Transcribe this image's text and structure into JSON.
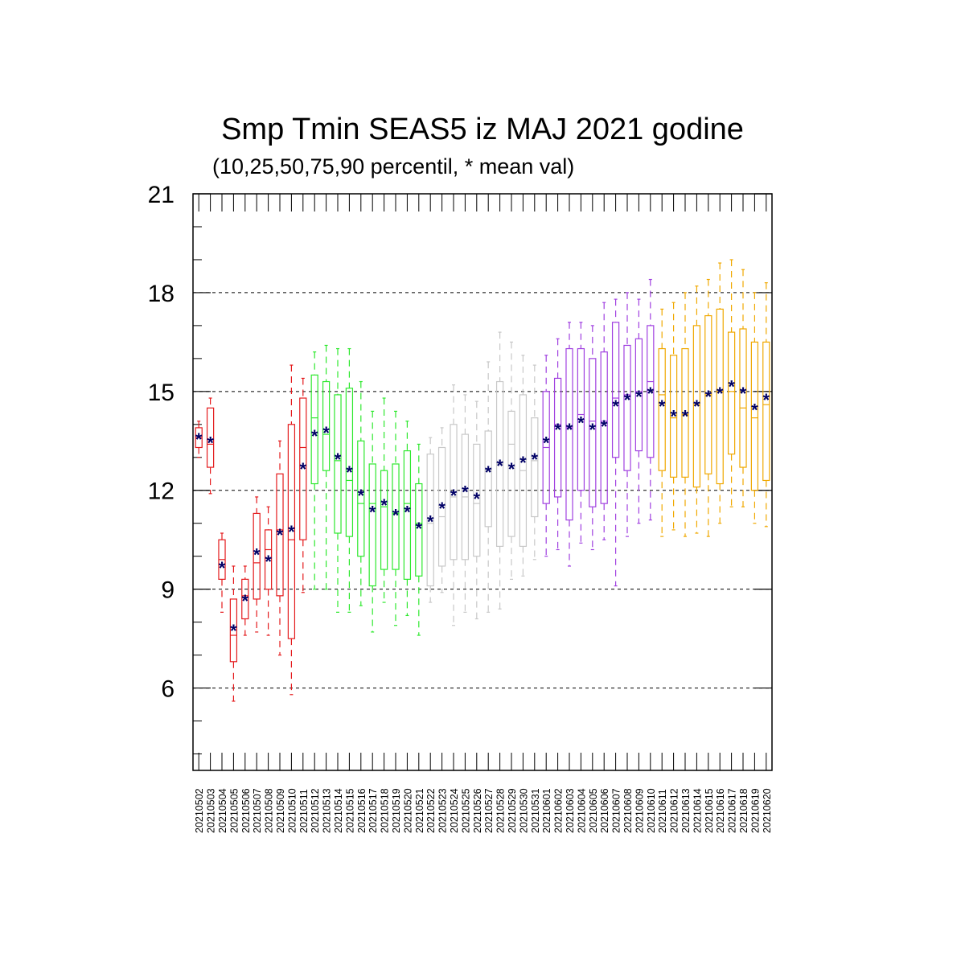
{
  "chart_data": {
    "type": "box",
    "title": "Smp Tmin SEAS5 iz MAJ 2021 godine",
    "subtitle": "(10,25,50,75,90 percentil, * mean val)",
    "ylim": [
      3.5,
      21
    ],
    "yticks": [
      6,
      9,
      12,
      15,
      18,
      21
    ],
    "grid": "horizontal dashed",
    "categories": [
      "20210502",
      "20210503",
      "20210504",
      "20210505",
      "20210506",
      "20210507",
      "20210508",
      "20210509",
      "20210510",
      "20210511",
      "20210512",
      "20210513",
      "20210514",
      "20210515",
      "20210516",
      "20210517",
      "20210518",
      "20210519",
      "20210520",
      "20210521",
      "20210522",
      "20210523",
      "20210524",
      "20210525",
      "20210526",
      "20210527",
      "20210528",
      "20210529",
      "20210530",
      "20210531",
      "20210601",
      "20210602",
      "20210603",
      "20210604",
      "20210605",
      "20210606",
      "20210607",
      "20210608",
      "20210609",
      "20210610",
      "20210611",
      "20210612",
      "20210613",
      "20210614",
      "20210615",
      "20210616",
      "20210617",
      "20210618",
      "20210619",
      "20210620"
    ],
    "colors": [
      "#e41a1c",
      "#e41a1c",
      "#e41a1c",
      "#e41a1c",
      "#e41a1c",
      "#e41a1c",
      "#e41a1c",
      "#e41a1c",
      "#e41a1c",
      "#e41a1c",
      "#2ee82e",
      "#2ee82e",
      "#2ee82e",
      "#2ee82e",
      "#2ee82e",
      "#2ee82e",
      "#2ee82e",
      "#2ee82e",
      "#2ee82e",
      "#2ee82e",
      "#c8c8c8",
      "#c8c8c8",
      "#c8c8c8",
      "#c8c8c8",
      "#c8c8c8",
      "#c8c8c8",
      "#c8c8c8",
      "#c8c8c8",
      "#c8c8c8",
      "#c8c8c8",
      "#a040e0",
      "#a040e0",
      "#a040e0",
      "#a040e0",
      "#a040e0",
      "#a040e0",
      "#a040e0",
      "#a040e0",
      "#a040e0",
      "#a040e0",
      "#f0a800",
      "#f0a800",
      "#f0a800",
      "#f0a800",
      "#f0a800",
      "#f0a800",
      "#f0a800",
      "#f0a800",
      "#f0a800",
      "#f0a800"
    ],
    "mean_marker_color": "#000066",
    "p10": [
      13.0,
      11.9,
      8.3,
      5.6,
      7.6,
      7.7,
      7.6,
      7.0,
      5.8,
      8.9,
      9.0,
      9.0,
      8.3,
      8.3,
      8.5,
      7.7,
      8.6,
      7.9,
      8.2,
      7.6,
      8.6,
      8.9,
      7.9,
      8.3,
      8.1,
      8.3,
      8.4,
      9.3,
      9.4,
      9.9,
      10.0,
      10.2,
      9.7,
      10.4,
      10.2,
      10.5,
      9.1,
      10.6,
      11.0,
      11.1,
      10.6,
      10.8,
      10.6,
      10.7,
      10.6,
      11.0,
      11.5,
      11.5,
      11.0,
      10.9
    ],
    "p25": [
      13.3,
      12.7,
      9.3,
      6.8,
      8.1,
      8.7,
      9.0,
      8.8,
      7.5,
      10.5,
      12.2,
      12.6,
      10.7,
      10.6,
      10.0,
      9.1,
      9.6,
      9.6,
      9.3,
      9.4,
      9.1,
      9.7,
      9.9,
      9.9,
      10.0,
      10.9,
      10.3,
      10.6,
      10.3,
      11.2,
      11.6,
      11.8,
      11.1,
      12.0,
      11.5,
      11.6,
      13.0,
      12.6,
      13.2,
      13.0,
      12.6,
      12.4,
      12.4,
      12.1,
      12.5,
      12.2,
      13.1,
      12.7,
      12.0,
      12.3
    ],
    "p50": [
      13.6,
      13.4,
      9.9,
      7.6,
      8.8,
      9.8,
      10.2,
      10.8,
      10.5,
      13.3,
      14.2,
      13.7,
      12.9,
      12.3,
      11.6,
      11.6,
      11.5,
      11.3,
      11.6,
      11.0,
      11.0,
      11.2,
      11.8,
      11.8,
      11.6,
      12.6,
      12.8,
      13.4,
      12.6,
      12.9,
      13.3,
      14.0,
      13.9,
      14.3,
      14.1,
      14.1,
      14.8,
      14.9,
      15.0,
      15.3,
      14.9,
      14.2,
      14.3,
      14.6,
      14.9,
      15.0,
      15.0,
      14.5,
      14.2,
      14.6
    ],
    "p75": [
      13.9,
      14.5,
      10.5,
      8.7,
      9.3,
      11.3,
      10.8,
      12.5,
      14.0,
      14.8,
      15.5,
      15.3,
      14.9,
      15.1,
      13.5,
      12.8,
      12.6,
      12.8,
      13.2,
      12.2,
      13.1,
      13.3,
      14.0,
      13.7,
      13.4,
      13.8,
      15.3,
      14.4,
      14.9,
      14.2,
      15.0,
      15.4,
      16.3,
      16.3,
      16.0,
      16.2,
      17.1,
      16.4,
      16.6,
      17.0,
      16.3,
      16.1,
      16.3,
      17.0,
      17.3,
      17.5,
      16.8,
      16.9,
      16.5,
      16.5
    ],
    "p90": [
      14.1,
      14.8,
      10.7,
      9.7,
      9.7,
      11.8,
      11.5,
      13.5,
      15.8,
      15.4,
      16.2,
      16.4,
      16.3,
      16.3,
      15.3,
      14.4,
      14.8,
      14.4,
      14.1,
      13.4,
      13.6,
      13.9,
      15.2,
      14.9,
      14.7,
      15.9,
      16.8,
      16.5,
      16.1,
      15.8,
      16.1,
      16.6,
      17.1,
      17.1,
      17.0,
      17.7,
      17.8,
      18.0,
      17.8,
      18.4,
      17.5,
      17.7,
      18.0,
      18.2,
      18.4,
      18.9,
      19.0,
      18.7,
      18.0,
      18.3
    ],
    "mean": [
      13.6,
      13.5,
      9.7,
      7.8,
      8.7,
      10.1,
      9.9,
      10.7,
      10.8,
      12.7,
      13.7,
      13.8,
      13.0,
      12.6,
      11.9,
      11.4,
      11.6,
      11.3,
      11.4,
      10.9,
      11.1,
      11.5,
      11.9,
      12.0,
      11.8,
      12.6,
      12.8,
      12.7,
      12.9,
      13.0,
      13.5,
      13.9,
      13.9,
      14.1,
      13.9,
      14.0,
      14.6,
      14.8,
      14.9,
      15.0,
      14.6,
      14.3,
      14.3,
      14.6,
      14.9,
      15.0,
      15.2,
      15.0,
      14.5,
      14.8
    ]
  }
}
